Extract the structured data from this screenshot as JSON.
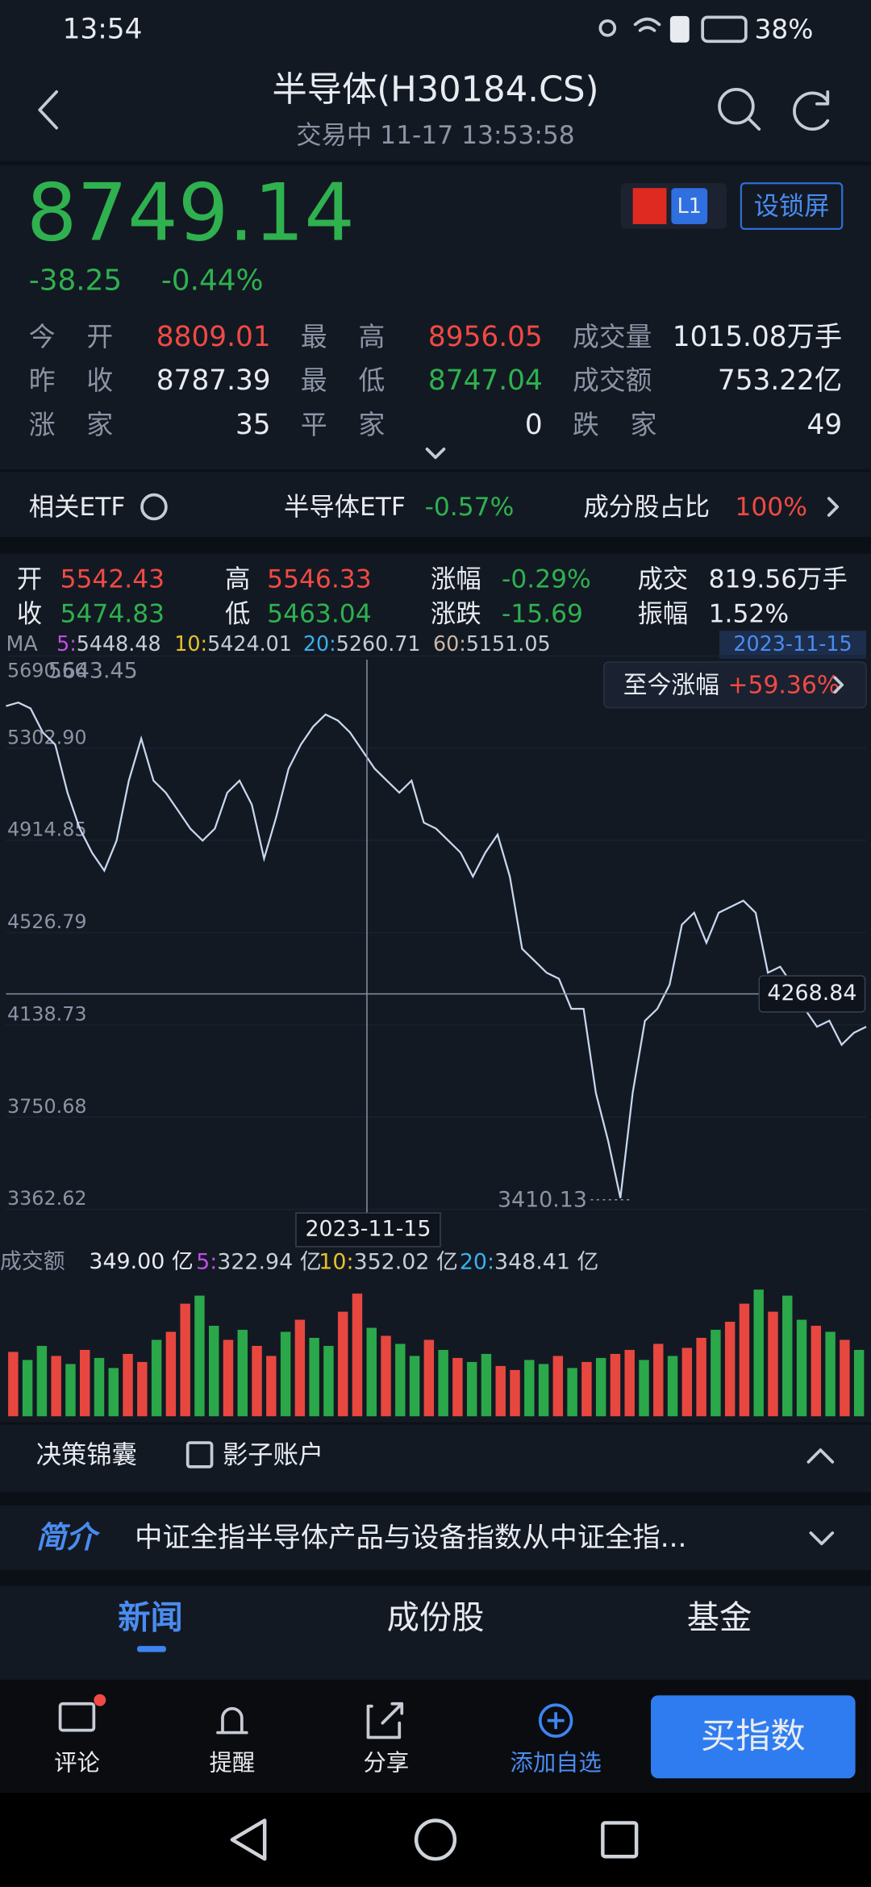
{
  "status_bar": {
    "time": "13:54",
    "battery": "38%"
  },
  "header": {
    "title": "半导体(H30184.CS)",
    "subtitle": "交易中 11-17 13:53:58"
  },
  "quote": {
    "price": "8749.14",
    "change": "-38.25",
    "change_pct": "-0.44%",
    "badge": "L1",
    "lock_button": "设锁屏"
  },
  "stats": [
    {
      "label": "今开",
      "value": "8809.01"
    },
    {
      "label": "最高",
      "value": "8956.05"
    },
    {
      "label": "成交量",
      "value": "1015.08万手"
    },
    {
      "label": "昨收",
      "value": "8787.39"
    },
    {
      "label": "最低",
      "value": "8747.04"
    },
    {
      "label": "成交额",
      "value": "753.22亿"
    },
    {
      "label": "涨家",
      "value": "35"
    },
    {
      "label": "平家",
      "value": "0"
    },
    {
      "label": "跌家",
      "value": "49"
    }
  ],
  "etf": {
    "label": "相关ETF",
    "name": "半导体ETF",
    "change": "-0.57%",
    "weight_label": "成分股占比",
    "weight": "100%"
  },
  "kline_info": [
    {
      "label": "开",
      "value": "5542.43"
    },
    {
      "label": "高",
      "value": "5546.33"
    },
    {
      "label": "涨幅",
      "value": "-0.29%"
    },
    {
      "label": "成交",
      "value": "819.56万手"
    },
    {
      "label": "收",
      "value": "5474.83"
    },
    {
      "label": "低",
      "value": "5463.04"
    },
    {
      "label": "涨跌",
      "value": "-15.69"
    },
    {
      "label": "振幅",
      "value": "1.52%"
    }
  ],
  "ma": {
    "label": "MA",
    "items": [
      {
        "period": "5:",
        "value": "5448.48"
      },
      {
        "period": "10:",
        "value": "5424.01"
      },
      {
        "period": "20:",
        "value": "5260.71"
      },
      {
        "period": "60:",
        "value": "5151.05"
      }
    ]
  },
  "date_badge": "2023-11-15",
  "since": {
    "label": "至今涨幅",
    "value": "+59.36%"
  },
  "chart": {
    "type": "line",
    "color": "#c9d8ee",
    "values": [
      5479.8,
      5494.9,
      5469.7,
      5368.6,
      5318.1,
      5115.9,
      4964.4,
      4863.3,
      4787.5,
      4913.8,
      5166.5,
      5343.3,
      5166.5,
      5115.9,
      5040.1,
      4964.4,
      4913.8,
      4964.4,
      5115.9,
      5166.5,
      5065.4,
      4838,
      5014.9,
      5217,
      5318.1,
      5393.9,
      5444.4,
      5419.1,
      5368.6,
      5292.8,
      5217,
      5166.5,
      5115.9,
      5166.5,
      4989.6,
      4964.4,
      4913.8,
      4863.3,
      4762.2,
      4863.3,
      4939.1,
      4762.2,
      4459,
      4408.5,
      4358,
      4332.7,
      4206.4,
      4206.4,
      3852.7,
      3650.6,
      3410.13,
      3852.7,
      4155.9,
      4206.4,
      4307.5,
      4560.1,
      4610.6,
      4484.3,
      4610.6,
      4635.9,
      4661.2,
      4610.6,
      4358,
      4383.3,
      4307.5,
      4206.4,
      4130.6,
      4155.9,
      4054.8,
      4105.3,
      4130.6
    ],
    "ylim": [
      3362.62,
      5690.56
    ],
    "yticks": [
      5690.56,
      {
        "value": 5302.9,
        "label": "5302.90"
      },
      4914.85,
      4526.79,
      4138.73,
      3750.68,
      3362.62
    ],
    "max_label": "5643.45",
    "min_label": "3410.13",
    "crosshair": 4268.84,
    "crosshair_date": "2023-11-15"
  },
  "volume": {
    "label": "成交额",
    "current": "349.00 亿",
    "ma": [
      {
        "period": "5:",
        "value": "322.94 亿"
      },
      {
        "period": "10:",
        "value": "352.02 亿"
      },
      {
        "period": "20:",
        "value": "348.41 亿"
      }
    ],
    "type": "bar",
    "up_color": "#e8473f",
    "down_color": "#2aa84a",
    "ylim": [
      0,
      700
    ],
    "values": [
      320,
      280,
      350,
      300,
      260,
      330,
      290,
      240,
      310,
      270,
      380,
      420,
      560,
      600,
      450,
      380,
      430,
      350,
      300,
      420,
      480,
      390,
      350,
      520,
      610,
      440,
      400,
      360,
      300,
      380,
      330,
      290,
      270,
      310,
      250,
      230,
      280,
      260,
      300,
      240,
      270,
      290,
      310,
      330,
      280,
      360,
      300,
      340,
      390,
      430,
      470,
      560,
      630,
      520,
      600,
      480,
      450,
      420,
      380,
      330
    ],
    "rising": [
      true,
      false,
      false,
      true,
      false,
      true,
      false,
      false,
      true,
      true,
      false,
      true,
      true,
      false,
      false,
      true,
      false,
      true,
      true,
      false,
      true,
      false,
      false,
      true,
      true,
      false,
      true,
      false,
      false,
      true,
      false,
      true,
      false,
      false,
      true,
      true,
      false,
      false,
      true,
      false,
      true,
      false,
      true,
      true,
      false,
      true,
      false,
      true,
      true,
      false,
      true,
      true,
      false,
      true,
      false,
      false,
      true,
      false,
      true,
      false
    ]
  },
  "panel": {
    "decision": "决策锦囊",
    "shadow": "影子账户"
  },
  "intro": {
    "label": "简介",
    "text": "中证全指半导体产品与设备指数从中证全指..."
  },
  "tabs": [
    "新闻",
    "成份股",
    "基金"
  ],
  "bottom_bar": {
    "items": [
      "评论",
      "提醒",
      "分享",
      "添加自选"
    ],
    "buy": "买指数"
  }
}
